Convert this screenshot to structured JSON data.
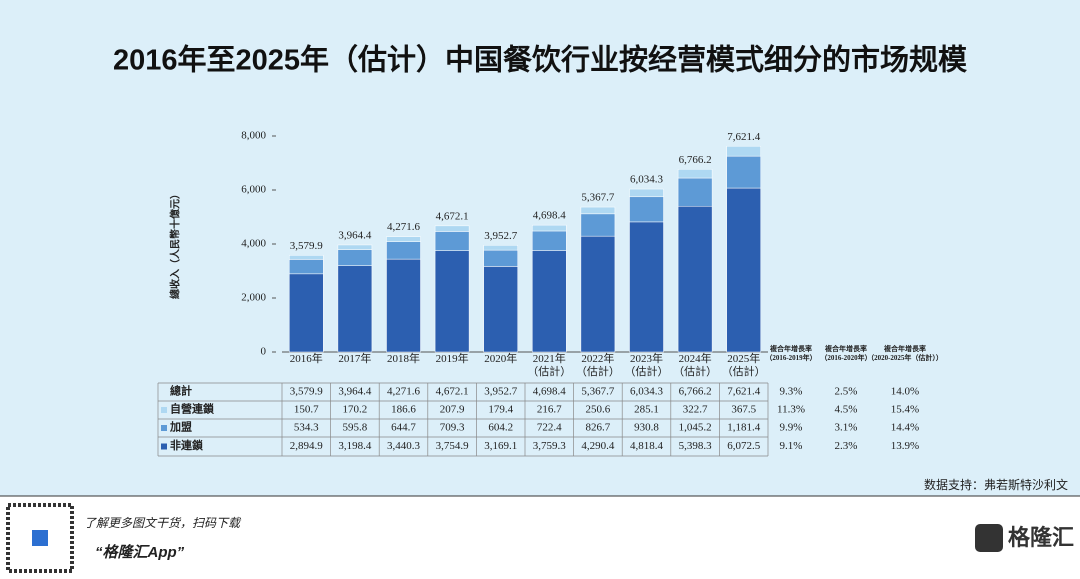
{
  "chart_data": {
    "type": "bar",
    "stacked": true,
    "title": "2016年至2025年（估计）中国餐饮行业按经营模式细分的市场规模",
    "y_label": "總收入（人民幣十億元）",
    "categories": [
      "2016年",
      "2017年",
      "2018年",
      "2019年",
      "2020年",
      "2021年\n（估計）",
      "2022年\n（估計）",
      "2023年\n（估計）",
      "2024年\n（估計）",
      "2025年\n（估計）"
    ],
    "series": [
      {
        "name": "非連鎖",
        "color": "#2c5fb0",
        "values": [
          2894.9,
          3198.4,
          3440.3,
          3754.9,
          3169.1,
          3759.3,
          4290.4,
          4818.4,
          5398.3,
          6072.5
        ],
        "value_labels": [
          "2,894.9",
          "3,198.4",
          "3,440.3",
          "3,754.9",
          "3,169.1",
          "3,759.3",
          "4,290.4",
          "4,818.4",
          "5,398.3",
          "6,072.5"
        ]
      },
      {
        "name": "加盟",
        "color": "#5d9ad6",
        "values": [
          534.3,
          595.8,
          644.7,
          709.3,
          604.2,
          722.4,
          826.7,
          930.8,
          1045.2,
          1181.4
        ],
        "value_labels": [
          "534.3",
          "595.8",
          "644.7",
          "709.3",
          "604.2",
          "722.4",
          "826.7",
          "930.8",
          "1,045.2",
          "1,181.4"
        ]
      },
      {
        "name": "自營連鎖",
        "color": "#aed8f2",
        "values": [
          150.7,
          170.2,
          186.6,
          207.9,
          179.4,
          216.7,
          250.6,
          285.1,
          322.7,
          367.5
        ],
        "value_labels": [
          "150.7",
          "170.2",
          "186.6",
          "207.9",
          "179.4",
          "216.7",
          "250.6",
          "285.1",
          "322.7",
          "367.5"
        ]
      }
    ],
    "total": {
      "name": "總計",
      "values": [
        3579.9,
        3964.4,
        4271.6,
        4672.1,
        3952.7,
        4698.4,
        5367.7,
        6034.3,
        6766.2,
        7621.4
      ],
      "value_labels": [
        "3,579.9",
        "3,964.4",
        "4,271.6",
        "4,672.1",
        "3,952.7",
        "4,698.4",
        "5,367.7",
        "6,034.3",
        "6,766.2",
        "7,621.4"
      ]
    },
    "ylim": [
      0,
      8000
    ],
    "yticks": [
      0,
      {
        "value": 2000,
        "label": "2,000"
      },
      {
        "value": 4000,
        "label": "4,000"
      },
      {
        "value": 6000,
        "label": "6,000"
      },
      {
        "value": 8000,
        "label": "8,000"
      }
    ],
    "cagr": {
      "headers": [
        "複合年增長率\n（2016-2019年）",
        "複合年增長率\n（2016-2020年）",
        "複合年增長率\n（2020-2025年（估計））"
      ],
      "total": [
        "9.3%",
        "2.5%",
        "14.0%"
      ],
      "series": [
        [
          "9.1%",
          "2.3%",
          "13.9%"
        ],
        [
          "9.9%",
          "3.1%",
          "14.4%"
        ],
        [
          "11.3%",
          "4.5%",
          "15.4%"
        ]
      ]
    },
    "source": "数据支持：弗若斯特沙利文"
  },
  "footer": {
    "tagline": "了解更多图文干货，扫码下载",
    "app": "“格隆汇App”",
    "logo": "格隆汇"
  }
}
